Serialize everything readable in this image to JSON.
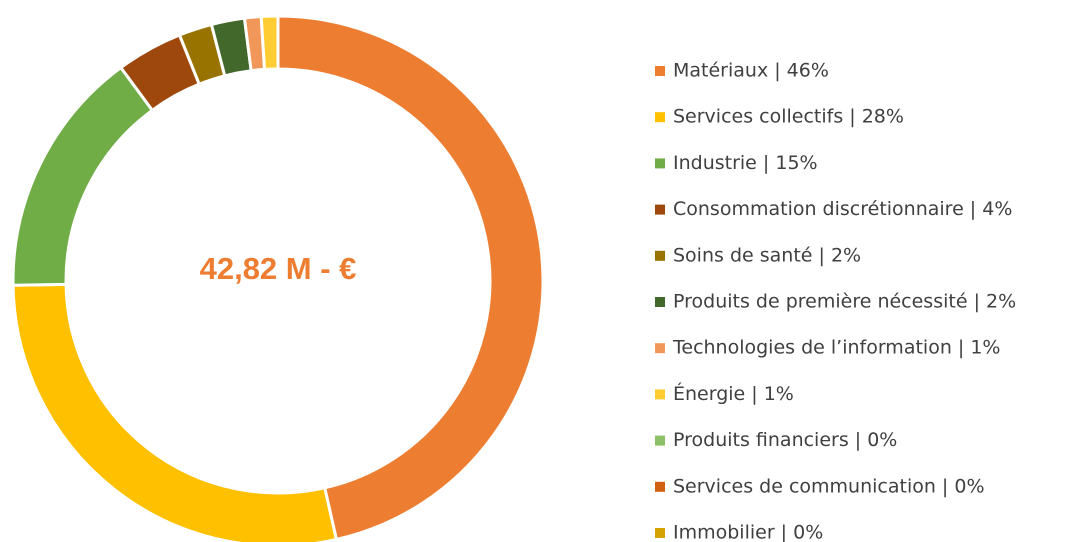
{
  "chart_data": {
    "type": "donut",
    "center_label": "42,82 M - €",
    "categories": [
      "Matériaux | 46%",
      "Services collectifs | 28%",
      "Industrie | 15%",
      "Consommation discrétionnaire | 4%",
      "Soins de santé | 2%",
      "Produits de première nécessité | 2%",
      "Technologies de l’information | 1%",
      "Énergie | 1%",
      "Produits financiers | 0%",
      "Services de communication | 0%",
      "Immobilier | 0%"
    ],
    "values": [
      46,
      28,
      15,
      4,
      2,
      2,
      1,
      1,
      0,
      0,
      0
    ],
    "colors": [
      "#ED7D31",
      "#FFC000",
      "#70AD47",
      "#9E480E",
      "#997300",
      "#43682B",
      "#F1975A",
      "#FFCD33",
      "#8CC168",
      "#D26012",
      "#D4A300"
    ]
  }
}
